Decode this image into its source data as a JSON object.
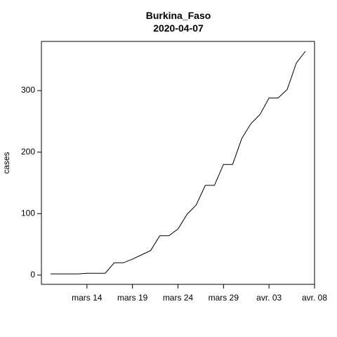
{
  "chart_data": {
    "type": "line",
    "title": "Burkina_Faso",
    "subtitle": "2020-04-07",
    "xlabel": "",
    "ylabel": "cases",
    "x_tick_labels": [
      "mars 14",
      "mars 19",
      "mars 24",
      "mars 29",
      "avr. 03",
      "avr. 08"
    ],
    "x_tick_dates": [
      "2020-03-14",
      "2020-03-19",
      "2020-03-24",
      "2020-03-29",
      "2020-04-03",
      "2020-04-08"
    ],
    "y_ticks": [
      0,
      100,
      200,
      300
    ],
    "xlim": [
      "2020-03-09",
      "2020-04-08"
    ],
    "ylim": [
      -15,
      380
    ],
    "grid": false,
    "series": [
      {
        "dates": [
          "2020-03-10",
          "2020-03-11",
          "2020-03-12",
          "2020-03-13",
          "2020-03-14",
          "2020-03-15",
          "2020-03-16",
          "2020-03-17",
          "2020-03-18",
          "2020-03-19",
          "2020-03-20",
          "2020-03-21",
          "2020-03-22",
          "2020-03-23",
          "2020-03-24",
          "2020-03-25",
          "2020-03-26",
          "2020-03-27",
          "2020-03-28",
          "2020-03-29",
          "2020-03-30",
          "2020-03-31",
          "2020-04-01",
          "2020-04-02",
          "2020-04-03",
          "2020-04-04",
          "2020-04-05",
          "2020-04-06",
          "2020-04-07"
        ],
        "values": [
          2,
          2,
          2,
          2,
          3,
          3,
          3,
          20,
          20,
          26,
          33,
          40,
          64,
          64,
          75,
          99,
          114,
          146,
          146,
          180,
          180,
          222,
          246,
          261,
          288,
          288,
          302,
          345,
          364
        ]
      }
    ]
  }
}
